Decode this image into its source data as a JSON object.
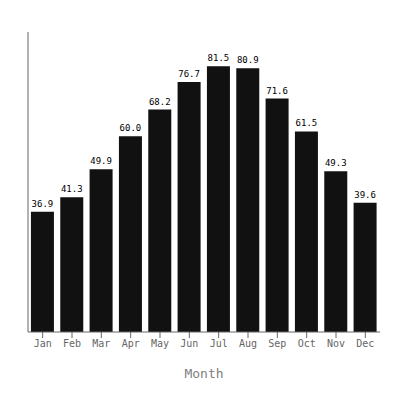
{
  "chart_data": {
    "type": "bar",
    "xlabel": "Month",
    "categories": [
      "Jan",
      "Feb",
      "Mar",
      "Apr",
      "May",
      "Jun",
      "Jul",
      "Aug",
      "Sep",
      "Oct",
      "Nov",
      "Dec"
    ],
    "values": [
      36.9,
      41.3,
      49.9,
      60.0,
      68.2,
      76.7,
      81.5,
      80.9,
      71.6,
      61.5,
      49.3,
      39.6
    ],
    "value_labels": [
      "36.9",
      "41.3",
      "49.9",
      "60.0",
      "68.2",
      "76.7",
      "81.5",
      "80.9",
      "71.6",
      "61.5",
      "49.3",
      "39.6"
    ],
    "color": "#111111",
    "ylim": [
      0,
      92
    ],
    "data_labels": true,
    "tick_labels": "x",
    "grid": false
  }
}
